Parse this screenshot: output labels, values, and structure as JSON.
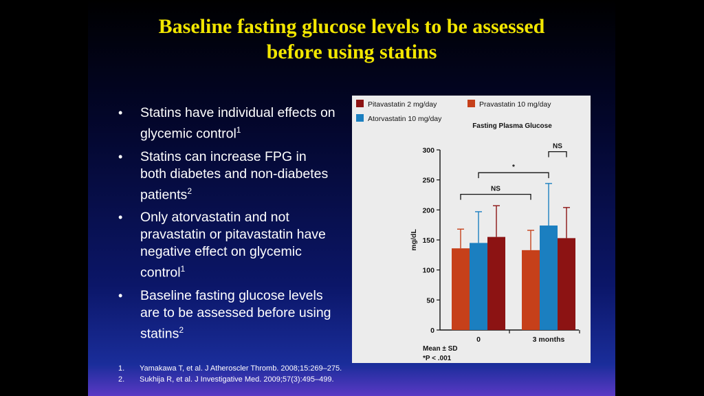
{
  "slide": {
    "title_lines": [
      "Baseline fasting glucose levels to be assessed",
      "before using statins"
    ],
    "bullets": [
      {
        "text": "Statins have individual effects on glycemic control",
        "sup": "1"
      },
      {
        "text": "Statins can increase FPG in both diabetes and non-diabetes patients",
        "sup": "2"
      },
      {
        "text": "Only atorvastatin and not pravastatin or pitavastatin have negative effect on glycemic control",
        "sup": "1"
      },
      {
        "text": "Baseline fasting glucose levels are to be assessed before using statins",
        "sup": "2"
      }
    ],
    "bullet_marker": "•",
    "references": [
      {
        "num": "1.",
        "text": "Yamakawa T, et al. J Atheroscler Thromb. 2008;15:269–275."
      },
      {
        "num": "2.",
        "text": "Sukhija R, et al. J Investigative Med. 2009;57(3):495–499."
      }
    ]
  },
  "chart_data": {
    "type": "bar",
    "title": "Fasting Plasma Glucose",
    "ylabel": "mg/dL",
    "xlabel": "",
    "categories": [
      "0",
      "3 months"
    ],
    "ylim": [
      0,
      300
    ],
    "yticks": [
      0,
      50,
      100,
      150,
      200,
      250,
      300
    ],
    "series": [
      {
        "name": "Pravastatin 10 mg/day",
        "color": "#c6401a",
        "values": [
          136,
          133
        ],
        "sd": [
          32,
          33
        ]
      },
      {
        "name": "Atorvastatin 10 mg/day",
        "color": "#1b7fc0",
        "values": [
          145,
          174
        ],
        "sd": [
          52,
          70
        ]
      },
      {
        "name": "Pitavastatin 2 mg/day",
        "color": "#8c1313",
        "values": [
          155,
          153
        ],
        "sd": [
          52,
          51
        ]
      }
    ],
    "legend_order": [
      "Pitavastatin 2 mg/day",
      "Pravastatin 10 mg/day",
      "Atorvastatin 10 mg/day"
    ],
    "legend_position": "top",
    "grid": false,
    "significance": [
      {
        "label": "NS",
        "from": [
          0,
          0
        ],
        "to": [
          1,
          0
        ],
        "y": 226
      },
      {
        "label": "*",
        "from": [
          0,
          1
        ],
        "to": [
          1,
          1
        ],
        "y": 262
      },
      {
        "label": "NS",
        "from": [
          1,
          1
        ],
        "to": [
          1,
          2
        ],
        "y": 297
      }
    ],
    "footnote_lines": [
      "Mean ± SD",
      "*P < .001"
    ]
  }
}
